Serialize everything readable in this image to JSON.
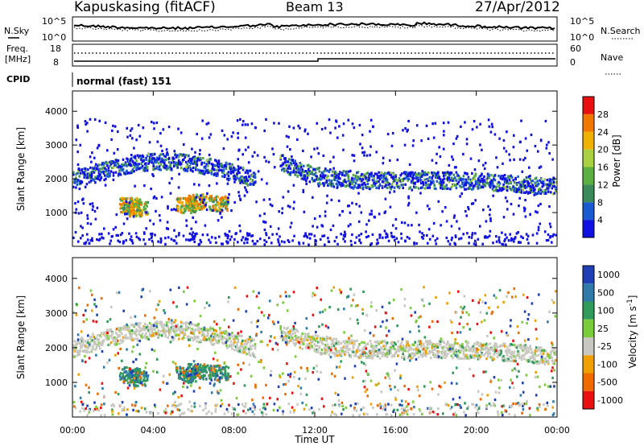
{
  "header": {
    "station": "Kapuskasing (fitACF)",
    "beam": "Beam 13",
    "date": "27/Apr/2012"
  },
  "top_panels": {
    "nsky_label": "N.Sky",
    "nsky_ticks": [
      "10^5",
      "10^0"
    ],
    "nsearch_label": "N.Search",
    "nsearch_ticks": [
      "10^5",
      "10^0"
    ],
    "freq_label_1": "Freq.",
    "freq_label_2": "[MHz]",
    "freq_ticks": [
      "18",
      "8"
    ],
    "nave_label": "Nave",
    "nave_ticks": [
      "60",
      "0"
    ],
    "cpid_label": "CPID",
    "cpid_value": "normal (fast) 151"
  },
  "chart_data": [
    {
      "type": "heatmap",
      "name": "power",
      "ylabel": "Slant Range [km]",
      "yticks": [
        "1000",
        "2000",
        "3000",
        "4000"
      ],
      "ylim": [
        0,
        4600
      ],
      "colorbar_label": "Power [dB]",
      "colorbar_ticks": [
        "4",
        "8",
        "12",
        "16",
        "20",
        "24",
        "28"
      ],
      "colors": [
        "#1010e0",
        "#1a5ad0",
        "#3a8a5a",
        "#5ab040",
        "#a8d040",
        "#f0b000",
        "#f07800",
        "#e81010"
      ],
      "echo_bands": [
        {
          "t0": 0.0,
          "t1": 8.5,
          "r": [
            1800,
            2600
          ],
          "dominant": "green"
        },
        {
          "t0": 10.0,
          "t1": 24.0,
          "r": [
            1200,
            2600
          ],
          "dominant": "blue"
        },
        {
          "t0": 1.5,
          "t1": 7.0,
          "r": [
            1100,
            1500
          ],
          "dominant": "orange"
        }
      ]
    },
    {
      "type": "heatmap",
      "name": "velocity",
      "ylabel": "Slant Range [km]",
      "yticks": [
        "1000",
        "2000",
        "3000",
        "4000"
      ],
      "ylim": [
        0,
        4600
      ],
      "colorbar_label": "Velocity [m s",
      "colorbar_label_sup": "-1",
      "colorbar_label_end": "]",
      "colorbar_ticks": [
        "1000",
        "500",
        "100",
        "25",
        "-25",
        "-100",
        "-500",
        "-1000"
      ],
      "colors": [
        "#1f3fb5",
        "#2f7aa8",
        "#2f9a5a",
        "#7acc3a",
        "#c8c8c0",
        "#f0a000",
        "#f06a00",
        "#e81010"
      ]
    }
  ],
  "time_axis": {
    "label": "Time UT",
    "ticks": [
      "00:00",
      "04:00",
      "08:00",
      "12:00",
      "16:00",
      "20:00",
      "00:00"
    ]
  }
}
